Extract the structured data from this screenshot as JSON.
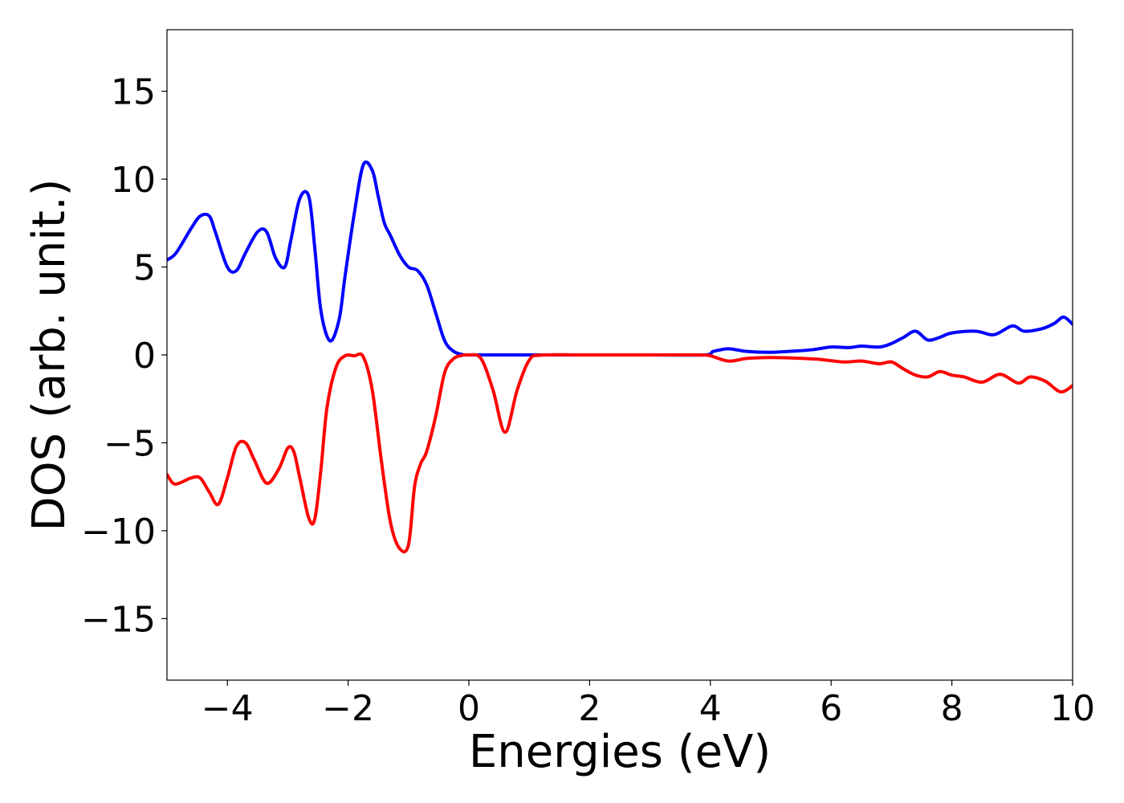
{
  "chart_data": {
    "type": "line",
    "title": "",
    "xlabel": "Energies (eV)",
    "ylabel": "DOS (arb. unit.)",
    "xlim": [
      -5,
      10
    ],
    "ylim": [
      -18.5,
      18.5
    ],
    "xticks": [
      -4,
      -2,
      0,
      2,
      4,
      6,
      8,
      10
    ],
    "xtick_labels": [
      "−4",
      "−2",
      "0",
      "2",
      "4",
      "6",
      "8",
      "10"
    ],
    "yticks": [
      15,
      10,
      5,
      0,
      -5,
      -10,
      -15
    ],
    "ytick_labels": [
      "15",
      "10",
      "5",
      "0",
      "−5",
      "−10",
      "−15"
    ],
    "grid": false,
    "legend": "none",
    "series": [
      {
        "color": "#0000ff",
        "x": [
          -5.0,
          -4.85,
          -4.6,
          -4.45,
          -4.3,
          -4.2,
          -4.0,
          -3.85,
          -3.7,
          -3.5,
          -3.35,
          -3.2,
          -3.05,
          -2.95,
          -2.8,
          -2.65,
          -2.55,
          -2.45,
          -2.3,
          -2.15,
          -2.05,
          -1.9,
          -1.75,
          -1.6,
          -1.5,
          -1.4,
          -1.3,
          -1.15,
          -1.0,
          -0.85,
          -0.7,
          -0.55,
          -0.4,
          -0.25,
          -0.1,
          0.0,
          0.5,
          1.0,
          2.0,
          3.0,
          3.9,
          4.05,
          4.3,
          4.6,
          5.0,
          5.4,
          5.7,
          6.0,
          6.3,
          6.5,
          6.8,
          7.0,
          7.2,
          7.4,
          7.6,
          7.8,
          8.0,
          8.4,
          8.7,
          9.0,
          9.2,
          9.5,
          9.7,
          9.85,
          10.0
        ],
        "y": [
          5.4,
          5.8,
          7.2,
          7.9,
          7.9,
          7.0,
          5.0,
          4.8,
          5.8,
          7.0,
          7.0,
          5.5,
          5.0,
          6.5,
          8.9,
          9.0,
          6.0,
          2.5,
          0.8,
          2.0,
          4.5,
          8.0,
          10.8,
          10.5,
          9.0,
          7.5,
          6.8,
          5.7,
          5.0,
          4.8,
          4.0,
          2.4,
          0.8,
          0.2,
          0.02,
          0.0,
          0.0,
          0.0,
          0.0,
          0.0,
          0.0,
          0.2,
          0.35,
          0.2,
          0.15,
          0.22,
          0.3,
          0.45,
          0.42,
          0.5,
          0.45,
          0.65,
          1.0,
          1.35,
          0.85,
          1.0,
          1.25,
          1.35,
          1.15,
          1.65,
          1.35,
          1.5,
          1.8,
          2.15,
          1.75
        ]
      },
      {
        "color": "#ff0000",
        "x": [
          -5.0,
          -4.9,
          -4.8,
          -4.6,
          -4.45,
          -4.3,
          -4.15,
          -4.0,
          -3.85,
          -3.7,
          -3.55,
          -3.35,
          -3.15,
          -3.0,
          -2.9,
          -2.8,
          -2.65,
          -2.55,
          -2.45,
          -2.35,
          -2.2,
          -2.05,
          -1.9,
          -1.75,
          -1.6,
          -1.45,
          -1.3,
          -1.15,
          -1.0,
          -0.9,
          -0.8,
          -0.7,
          -0.55,
          -0.4,
          -0.25,
          -0.1,
          0.0,
          0.2,
          0.4,
          0.6,
          0.8,
          1.0,
          1.2,
          2.0,
          3.0,
          3.8,
          4.0,
          4.3,
          4.6,
          5.0,
          5.4,
          5.8,
          6.2,
          6.5,
          6.8,
          7.0,
          7.2,
          7.4,
          7.6,
          7.8,
          8.0,
          8.2,
          8.5,
          8.8,
          9.1,
          9.3,
          9.55,
          9.8,
          10.0
        ],
        "y": [
          -6.8,
          -7.3,
          -7.3,
          -7.0,
          -7.0,
          -7.8,
          -8.5,
          -7.0,
          -5.2,
          -5.0,
          -6.0,
          -7.3,
          -6.5,
          -5.3,
          -5.5,
          -7.0,
          -9.3,
          -9.3,
          -6.5,
          -3.0,
          -0.7,
          -0.05,
          -0.05,
          -0.1,
          -2.0,
          -6.0,
          -9.5,
          -11.0,
          -10.8,
          -7.5,
          -6.2,
          -5.5,
          -3.5,
          -1.0,
          -0.2,
          -0.02,
          0.0,
          -0.2,
          -2.0,
          -4.4,
          -2.0,
          -0.3,
          -0.01,
          0.0,
          0.0,
          0.0,
          -0.05,
          -0.35,
          -0.2,
          -0.15,
          -0.18,
          -0.25,
          -0.4,
          -0.35,
          -0.5,
          -0.4,
          -0.8,
          -1.15,
          -1.25,
          -0.95,
          -1.15,
          -1.25,
          -1.55,
          -1.1,
          -1.6,
          -1.25,
          -1.5,
          -2.1,
          -1.75
        ]
      }
    ]
  }
}
